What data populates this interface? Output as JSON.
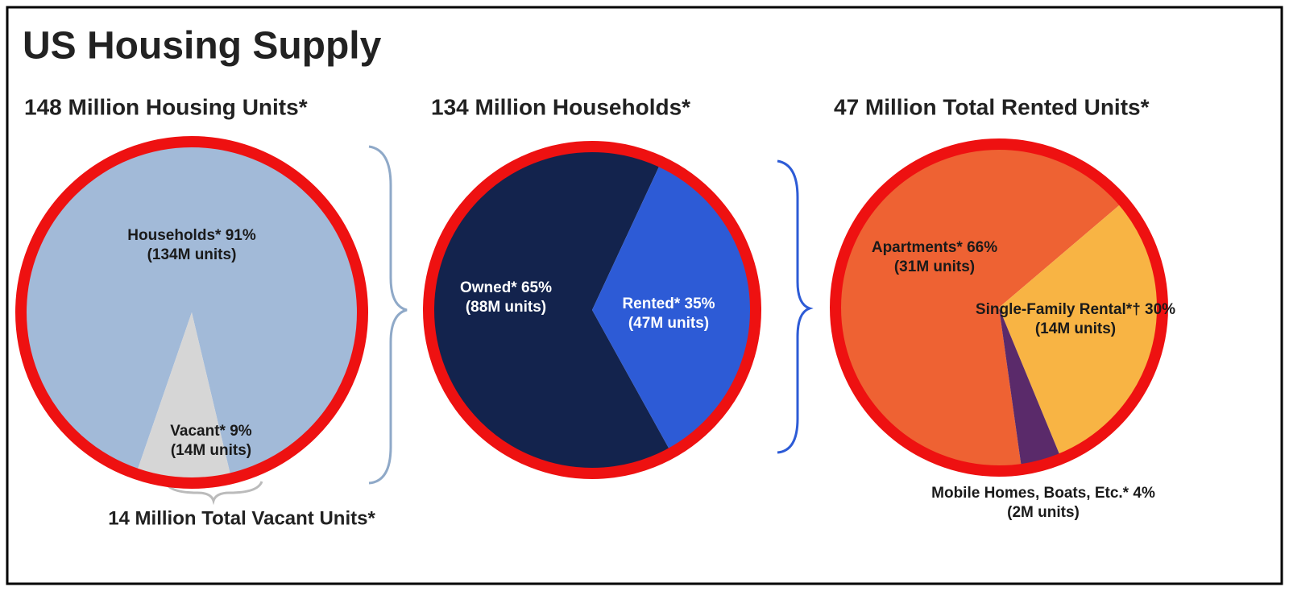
{
  "title": "US Housing Supply",
  "chart_data": [
    {
      "type": "pie",
      "title": "148 Million Housing Units*",
      "categories": [
        "Households*",
        "Vacant*"
      ],
      "values": [
        91,
        9
      ],
      "value_labels": [
        "91%",
        "9%"
      ],
      "unit_labels": [
        "(134M units)",
        "(14M units)"
      ],
      "colors": [
        "#a2bad8",
        "#d6d6d6"
      ],
      "annotation": "14 Million Total Vacant Units*"
    },
    {
      "type": "pie",
      "title": "134 Million Households*",
      "categories": [
        "Owned*",
        "Rented*"
      ],
      "values": [
        65,
        35
      ],
      "value_labels": [
        "65%",
        "35%"
      ],
      "unit_labels": [
        "(88M units)",
        "(47M units)"
      ],
      "colors": [
        "#13234d",
        "#2d5bd6"
      ]
    },
    {
      "type": "pie",
      "title": "47 Million Total Rented Units*",
      "categories": [
        "Apartments*",
        "Single-Family Rental*†",
        "Mobile Homes, Boats, Etc.*"
      ],
      "values": [
        66,
        30,
        4
      ],
      "value_labels": [
        "66%",
        "30%",
        "4%"
      ],
      "unit_labels": [
        "(31M units)",
        "(14M units)",
        "(2M units)"
      ],
      "colors": [
        "#ee6233",
        "#f8b444",
        "#5a2a6a"
      ]
    }
  ]
}
